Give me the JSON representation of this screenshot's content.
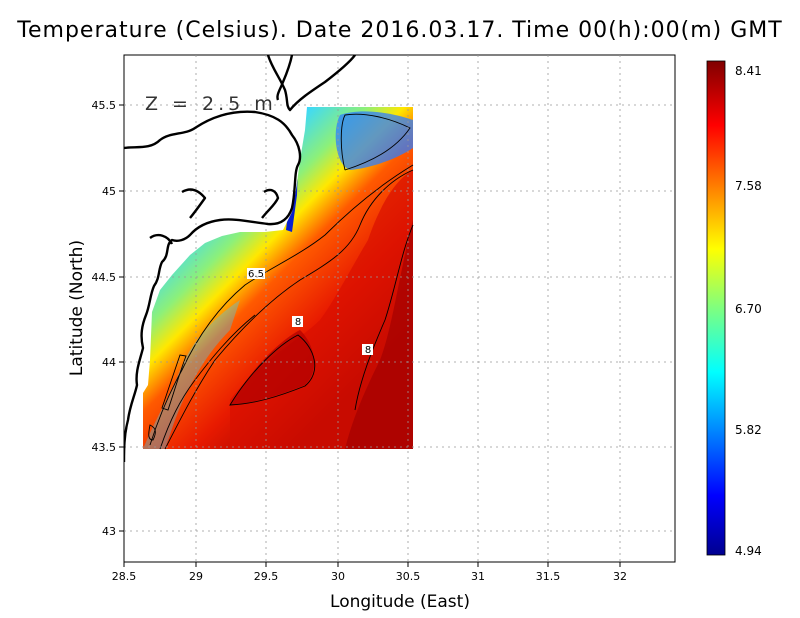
{
  "title": "Temperature (Celsius). Date 2016.03.17. Time 00(h):00(m)  GMT",
  "depth_label": "Z  =  2.5  m",
  "colorbar": {
    "tick_labels": [
      "8.41",
      "7.58",
      "6.70",
      "5.82",
      "4.94"
    ],
    "min": 4.94,
    "max": 8.41
  },
  "chart_data": {
    "type": "heatmap",
    "title": "Temperature (Celsius). Date 2016.03.17. Time 00(h):00(m)  GMT",
    "xlabel": "Longitude (East)",
    "ylabel": "Latitude (North)",
    "xlim": [
      28.5,
      32.4
    ],
    "ylim": [
      42.8,
      45.8
    ],
    "x_ticks": [
      "28.5",
      "29",
      "29.5",
      "30",
      "30.5",
      "31",
      "31.5",
      "32"
    ],
    "y_ticks": [
      "45.5",
      "45",
      "44.5",
      "44",
      "43.5",
      "43"
    ],
    "grid": true,
    "contour_labels": [
      "6.5",
      "8",
      "8"
    ],
    "data_extent": {
      "lon": [
        28.65,
        30.55
      ],
      "lat": [
        43.5,
        45.5
      ]
    },
    "value_range": [
      4.94,
      8.41
    ],
    "colormap": "jet"
  }
}
